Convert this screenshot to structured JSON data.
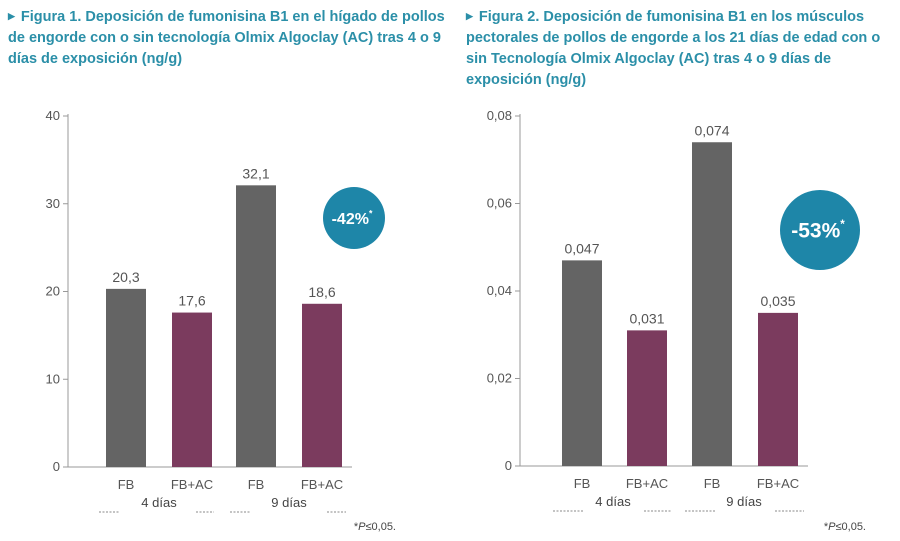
{
  "colors": {
    "title": "#2b8fa8",
    "fb_bar": "#646464",
    "fbac_bar": "#7b3b5e",
    "badge": "#1e86a8",
    "axis": "#999999"
  },
  "figures": [
    {
      "title": "Figura 1. Deposición de fumonisina B1 en el hígado de pollos de engorde con o sin tecnología Olmix Algoclay (AC) tras 4 o 9 días de exposición (ng/g)",
      "badge": "-42%",
      "badge_star": "*",
      "footnote_star": "*",
      "footnote_p": "P",
      "footnote_rest": "≤0,05."
    },
    {
      "title": "Figura 2. Deposición de fumonisina B1 en los músculos pectorales de pollos de engorde a los 21 días de edad con o sin Tecnología Olmix Algoclay (AC) tras 4 o 9 días de exposición (ng/g)",
      "badge": "-53%",
      "badge_star": "*",
      "footnote_star": "*",
      "footnote_p": "P",
      "footnote_rest": "≤0,05."
    }
  ],
  "chart_data": [
    {
      "type": "bar",
      "title": "Figura 1. Deposición de fumonisina B1 en el hígado de pollos de engorde con o sin tecnología Olmix Algoclay (AC) tras 4 o 9 días de exposición (ng/g)",
      "categories": [
        "FB",
        "FB+AC",
        "FB",
        "FB+AC"
      ],
      "groups": [
        "4 días",
        "9 días"
      ],
      "values": [
        20.3,
        17.6,
        32.1,
        18.6
      ],
      "value_labels": [
        "20,3",
        "17,6",
        "32,1",
        "18,6"
      ],
      "ylim": [
        0,
        40
      ],
      "yticks": [
        0,
        10,
        20,
        30,
        40
      ],
      "ytick_labels": [
        "0",
        "10",
        "20",
        "30",
        "40"
      ],
      "bar_colors": [
        "#646464",
        "#7b3b5e",
        "#646464",
        "#7b3b5e"
      ],
      "grid": false,
      "xlabel": "",
      "ylabel": ""
    },
    {
      "type": "bar",
      "title": "Figura 2. Deposición de fumonisina B1 en los músculos pectorales de pollos de engorde a los 21 días de edad con o sin Tecnología Olmix Algoclay (AC) tras 4 o 9 días de exposición (ng/g)",
      "categories": [
        "FB",
        "FB+AC",
        "FB",
        "FB+AC"
      ],
      "groups": [
        "4 días",
        "9 días"
      ],
      "values": [
        0.047,
        0.031,
        0.074,
        0.035
      ],
      "value_labels": [
        "0,047",
        "0,031",
        "0,074",
        "0,035"
      ],
      "ylim": [
        0,
        0.08
      ],
      "yticks": [
        0,
        0.02,
        0.04,
        0.06,
        0.08
      ],
      "ytick_labels": [
        "0",
        "0,02",
        "0,04",
        "0,06",
        "0,08"
      ],
      "bar_colors": [
        "#646464",
        "#7b3b5e",
        "#646464",
        "#7b3b5e"
      ],
      "grid": false,
      "xlabel": "",
      "ylabel": ""
    }
  ]
}
